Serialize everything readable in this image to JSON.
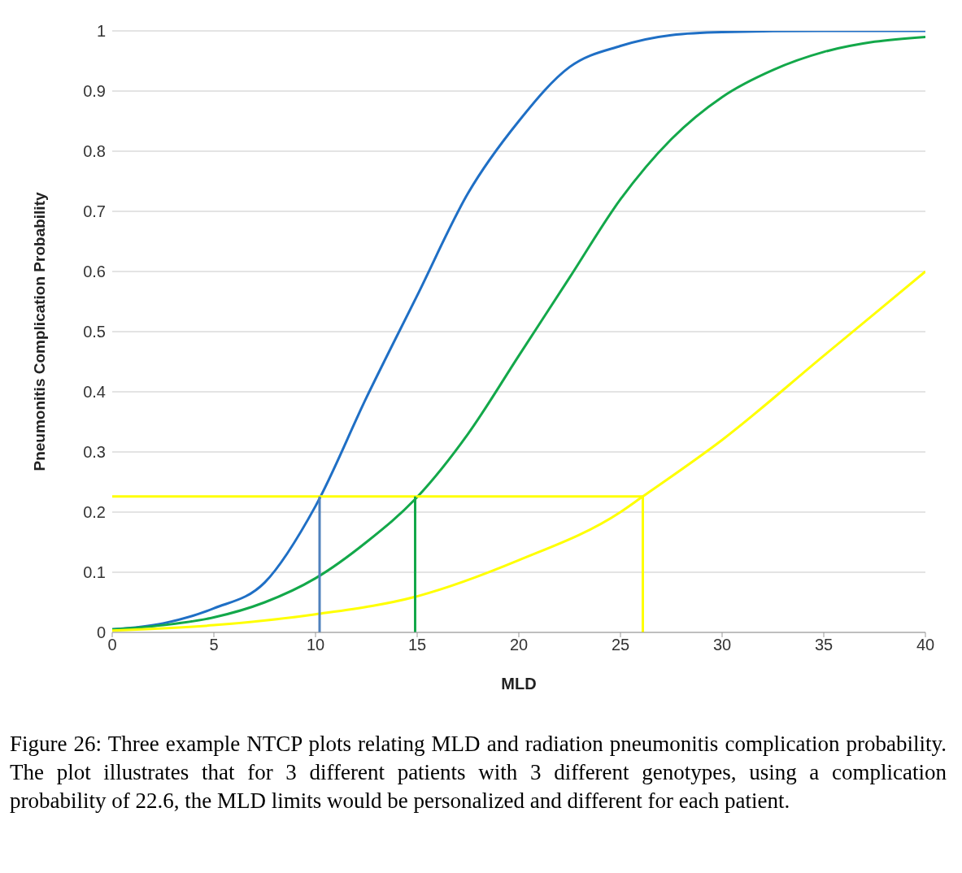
{
  "chart_data": {
    "type": "line",
    "xlabel": "MLD",
    "ylabel": "Pneumonitis Complication Probability",
    "xlim": [
      0,
      40
    ],
    "xticks": [
      0,
      5,
      10,
      15,
      20,
      25,
      30,
      35,
      40
    ],
    "ylim": [
      0,
      1
    ],
    "yticks": [
      0,
      0.1,
      0.2,
      0.3,
      0.4,
      0.5,
      0.6,
      0.7,
      0.8,
      0.9,
      1
    ],
    "grid": "y",
    "marker": "none",
    "line_style": "solid",
    "series": [
      {
        "color": "#1f6fc5",
        "x": [
          0,
          2.5,
          5,
          7.5,
          10,
          12.5,
          15,
          17.5,
          20,
          22.5,
          25,
          27.5,
          30,
          35,
          40
        ],
        "values": [
          0.005,
          0.015,
          0.04,
          0.083,
          0.21,
          0.39,
          0.56,
          0.73,
          0.85,
          0.94,
          0.975,
          0.993,
          0.998,
          1,
          1
        ]
      },
      {
        "color": "#13a84a",
        "x": [
          0,
          2.5,
          5,
          7.5,
          10,
          12.5,
          15,
          17.5,
          20,
          22.5,
          25,
          27.5,
          30,
          32.5,
          35,
          37.5,
          40
        ],
        "values": [
          0.005,
          0.012,
          0.025,
          0.05,
          0.09,
          0.15,
          0.225,
          0.33,
          0.46,
          0.59,
          0.72,
          0.82,
          0.89,
          0.935,
          0.965,
          0.982,
          0.99
        ]
      },
      {
        "color": "#ffff00",
        "x": [
          0,
          5,
          10,
          15,
          20,
          25,
          26.1,
          30,
          35,
          40
        ],
        "values": [
          0.003,
          0.012,
          0.03,
          0.06,
          0.12,
          0.2,
          0.226,
          0.32,
          0.46,
          0.6
        ]
      },
      {
        "color": "#ffff00",
        "x": [
          0,
          26.1
        ],
        "values": [
          0.226,
          0.226
        ]
      },
      {
        "color": "#4f81bd",
        "x": [
          10.2,
          10.2
        ],
        "values": [
          0,
          0.226
        ]
      },
      {
        "color": "#13a84a",
        "x": [
          14.9,
          14.9
        ],
        "values": [
          0,
          0.226
        ]
      },
      {
        "color": "#ffff00",
        "x": [
          26.1,
          26.1
        ],
        "values": [
          0,
          0.226
        ]
      }
    ],
    "annotations": [
      "Figure 26: Three example NTCP plots relating MLD and radiation pneumonitis complication probability. The plot illustrates that for 3 different patients with 3 different genotypes, using a complication probability of 22.6, the MLD limits would be personalized and different for each patient."
    ]
  }
}
